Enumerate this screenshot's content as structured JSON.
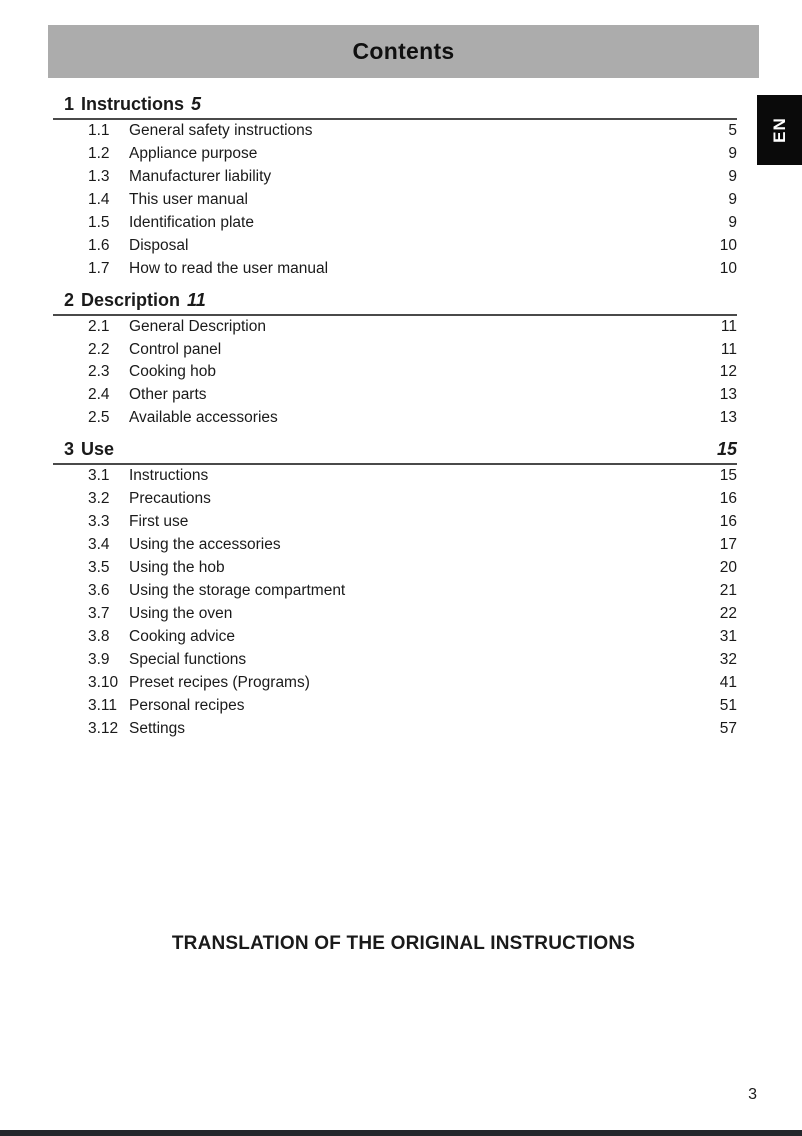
{
  "header": {
    "title": "Contents"
  },
  "side_tab": {
    "label": "EN"
  },
  "colors": {
    "header_bg": "#acacac",
    "tab_bg": "#0a0a0a",
    "tab_fg": "#ffffff",
    "text": "#1a1a1a",
    "rule": "#4a4a4a",
    "bottom_bar": "#23272b"
  },
  "sections": [
    {
      "number": "1",
      "title": "Instructions",
      "page": "5",
      "page_inline": true,
      "items": [
        {
          "num": "1.1",
          "title": "General safety instructions",
          "page": "5"
        },
        {
          "num": "1.2",
          "title": "Appliance purpose",
          "page": "9"
        },
        {
          "num": "1.3",
          "title": "Manufacturer liability",
          "page": "9"
        },
        {
          "num": "1.4",
          "title": "This user manual",
          "page": "9"
        },
        {
          "num": "1.5",
          "title": "Identification plate",
          "page": "9"
        },
        {
          "num": "1.6",
          "title": "Disposal",
          "page": "10"
        },
        {
          "num": "1.7",
          "title": "How to read the user manual",
          "page": "10"
        }
      ]
    },
    {
      "number": "2",
      "title": "Description",
      "page": "11",
      "page_inline": true,
      "items": [
        {
          "num": "2.1",
          "title": "General Description",
          "page": "11"
        },
        {
          "num": "2.2",
          "title": "Control panel",
          "page": "11"
        },
        {
          "num": "2.3",
          "title": "Cooking hob",
          "page": "12"
        },
        {
          "num": "2.4",
          "title": "Other parts",
          "page": "13"
        },
        {
          "num": "2.5",
          "title": "Available accessories",
          "page": "13"
        }
      ]
    },
    {
      "number": "3",
      "title": "Use",
      "page": "15",
      "page_inline": false,
      "items": [
        {
          "num": "3.1",
          "title": "Instructions",
          "page": "15"
        },
        {
          "num": "3.2",
          "title": "Precautions",
          "page": "16"
        },
        {
          "num": "3.3",
          "title": "First use",
          "page": "16"
        },
        {
          "num": "3.4",
          "title": "Using the accessories",
          "page": "17"
        },
        {
          "num": "3.5",
          "title": "Using the hob",
          "page": "20"
        },
        {
          "num": "3.6",
          "title": "Using the storage compartment",
          "page": "21"
        },
        {
          "num": "3.7",
          "title": "Using the oven",
          "page": "22"
        },
        {
          "num": "3.8",
          "title": "Cooking advice",
          "page": "31"
        },
        {
          "num": "3.9",
          "title": "Special functions",
          "page": "32"
        },
        {
          "num": "3.10",
          "title": "Preset recipes (Programs)",
          "page": "41"
        },
        {
          "num": "3.11",
          "title": "Personal recipes",
          "page": "51"
        },
        {
          "num": "3.12",
          "title": "Settings",
          "page": "57"
        }
      ]
    }
  ],
  "footer_note": "TRANSLATION OF THE ORIGINAL INSTRUCTIONS",
  "page_number": "3"
}
